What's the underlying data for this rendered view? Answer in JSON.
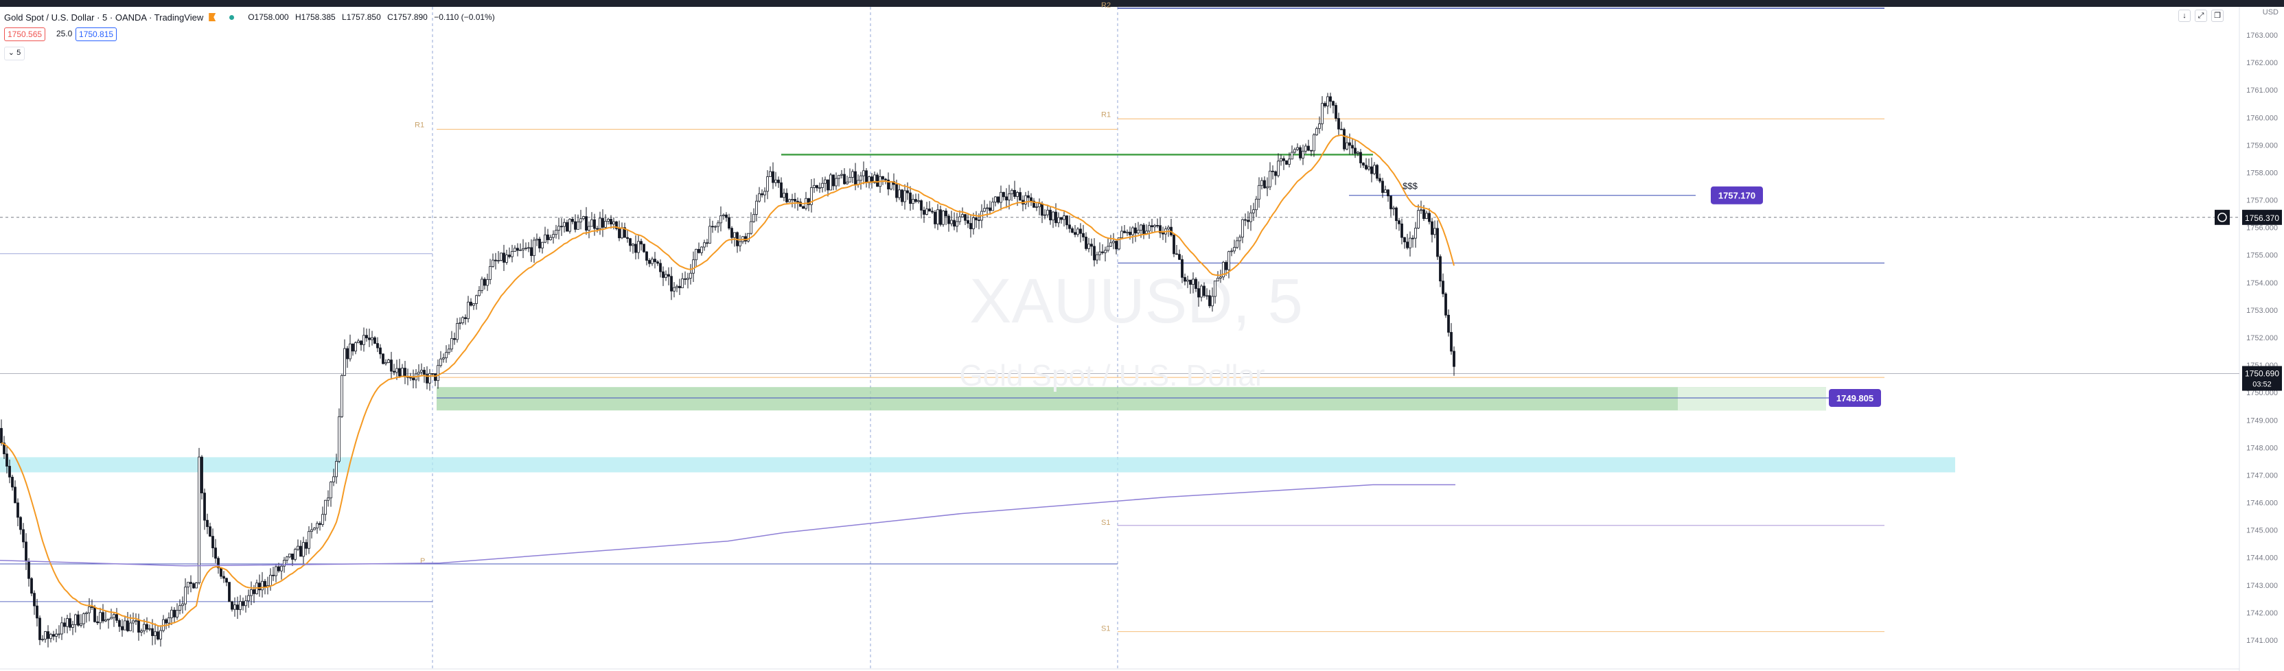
{
  "header": {
    "symbol": "Gold Spot / U.S. Dollar · 5 · OANDA · TradingView",
    "open_label": "O",
    "open": "1758.000",
    "high_label": "H",
    "high": "1758.385",
    "low_label": "L",
    "low": "1757.850",
    "close_label": "C",
    "close": "1757.890",
    "change": "−0.110 (−0.01%)"
  },
  "trade": {
    "sell": "1750.565",
    "spread": "25.0",
    "buy": "1750.815"
  },
  "collapse_label": "5",
  "currency": "USD",
  "window_buttons": [
    "↓",
    "⤢",
    "❐"
  ],
  "icons": {
    "flag": "flag-icon",
    "status": "market-status-icon",
    "collapse": "chevron-down-icon"
  },
  "chart_data": {
    "type": "candlestick",
    "watermark": {
      "symbol": "XAUUSD, 5",
      "description": "Gold Spot / U.S. Dollar"
    },
    "yaxis": {
      "ticks": [
        1763,
        1762,
        1761,
        1760,
        1759,
        1758,
        1757,
        1756,
        1755,
        1754,
        1753,
        1752,
        1751,
        1750,
        1749,
        1748,
        1747,
        1746,
        1745,
        1744,
        1743,
        1742,
        1741
      ],
      "ylim": [
        1740.2,
        1764.2
      ]
    },
    "current_price": {
      "value": "1750.690",
      "countdown": "03:52",
      "color": "#131722"
    },
    "crosshair_price": {
      "value": "1756.370",
      "color": "#131722"
    },
    "price_labels": [
      {
        "value": "1757.170",
        "color": "#5b3cc4"
      },
      {
        "value": "1749.805",
        "color": "#5b3cc4"
      }
    ],
    "annotation": "$$$",
    "pivot_labels": [
      "R1",
      "R1",
      "P",
      "S1",
      "S1",
      "R2"
    ],
    "horizontal_lines": [
      {
        "price": 1759.57,
        "color": "#f7c58a"
      },
      {
        "price": 1759.95,
        "color": "#f7c58a"
      },
      {
        "price": 1758.65,
        "color": "#43a047"
      },
      {
        "price": 1757.17,
        "color": "#5c6bc0"
      },
      {
        "price": 1754.71,
        "color": "#5c6bc0"
      },
      {
        "price": 1750.55,
        "color": "#f7c58a"
      },
      {
        "price": 1749.805,
        "color": "#5c6bc0"
      },
      {
        "price": 1745.17,
        "color": "#b39ddb"
      },
      {
        "price": 1743.77,
        "color": "#5c6bc0"
      },
      {
        "price": 1741.31,
        "color": "#f7c58a"
      }
    ],
    "zones": [
      {
        "from": 1749.35,
        "to": 1750.2,
        "color": "#a5d6a7"
      },
      {
        "from": 1747.1,
        "to": 1747.65,
        "color": "#b2ebf2"
      }
    ],
    "series": [
      {
        "name": "ema",
        "color": "#f59a23"
      },
      {
        "name": "long-ma",
        "color": "#8e7fd6"
      }
    ]
  },
  "colors": {
    "accent": "#5b3cc4",
    "up": "#ffffff",
    "down": "#131722",
    "grid": "#e0e3eb"
  }
}
